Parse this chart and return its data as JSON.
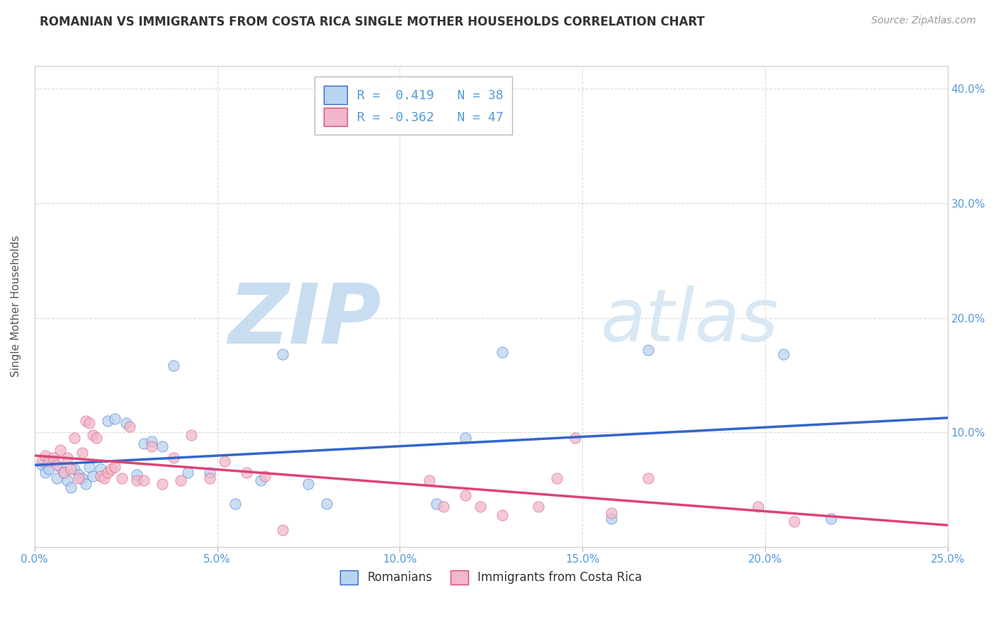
{
  "title": "ROMANIAN VS IMMIGRANTS FROM COSTA RICA SINGLE MOTHER HOUSEHOLDS CORRELATION CHART",
  "source": "Source: ZipAtlas.com",
  "ylabel": "Single Mother Households",
  "watermark_zip": "ZIP",
  "watermark_atlas": "atlas",
  "xlim": [
    0.0,
    0.25
  ],
  "ylim": [
    0.0,
    0.42
  ],
  "xticks": [
    0.0,
    0.05,
    0.1,
    0.15,
    0.2,
    0.25
  ],
  "yticks": [
    0.1,
    0.2,
    0.3,
    0.4
  ],
  "xticklabels": [
    "0.0%",
    "5.0%",
    "10.0%",
    "15.0%",
    "20.0%",
    "25.0%"
  ],
  "yticklabels": [
    "10.0%",
    "20.0%",
    "30.0%",
    "40.0%"
  ],
  "legend_labels": [
    "Romanians",
    "Immigrants from Costa Rica"
  ],
  "series1_color": "#b8d4f0",
  "series2_color": "#f0b8c8",
  "line1_color": "#3366cc",
  "line2_color": "#dd4477",
  "R1": 0.419,
  "N1": 38,
  "R2": -0.362,
  "N2": 47,
  "series1_x": [
    0.002,
    0.003,
    0.004,
    0.005,
    0.006,
    0.007,
    0.008,
    0.009,
    0.01,
    0.011,
    0.012,
    0.013,
    0.014,
    0.015,
    0.016,
    0.018,
    0.02,
    0.022,
    0.025,
    0.028,
    0.03,
    0.032,
    0.035,
    0.038,
    0.042,
    0.048,
    0.055,
    0.062,
    0.068,
    0.075,
    0.08,
    0.11,
    0.118,
    0.128,
    0.158,
    0.168,
    0.205,
    0.218
  ],
  "series1_y": [
    0.072,
    0.065,
    0.068,
    0.075,
    0.06,
    0.07,
    0.065,
    0.058,
    0.052,
    0.068,
    0.063,
    0.06,
    0.055,
    0.07,
    0.062,
    0.068,
    0.11,
    0.112,
    0.108,
    0.063,
    0.09,
    0.092,
    0.088,
    0.158,
    0.065,
    0.065,
    0.038,
    0.058,
    0.168,
    0.055,
    0.038,
    0.038,
    0.095,
    0.17,
    0.025,
    0.172,
    0.168,
    0.025
  ],
  "series2_x": [
    0.002,
    0.003,
    0.004,
    0.005,
    0.006,
    0.007,
    0.008,
    0.009,
    0.01,
    0.011,
    0.012,
    0.013,
    0.014,
    0.015,
    0.016,
    0.017,
    0.018,
    0.019,
    0.02,
    0.021,
    0.022,
    0.024,
    0.026,
    0.028,
    0.03,
    0.032,
    0.035,
    0.038,
    0.04,
    0.043,
    0.048,
    0.052,
    0.058,
    0.063,
    0.068,
    0.108,
    0.112,
    0.118,
    0.122,
    0.128,
    0.138,
    0.143,
    0.148,
    0.158,
    0.168,
    0.198,
    0.208
  ],
  "series2_y": [
    0.075,
    0.08,
    0.075,
    0.078,
    0.072,
    0.085,
    0.065,
    0.078,
    0.068,
    0.095,
    0.06,
    0.082,
    0.11,
    0.108,
    0.098,
    0.095,
    0.062,
    0.06,
    0.065,
    0.068,
    0.07,
    0.06,
    0.105,
    0.058,
    0.058,
    0.088,
    0.055,
    0.078,
    0.058,
    0.098,
    0.06,
    0.075,
    0.065,
    0.062,
    0.015,
    0.058,
    0.035,
    0.045,
    0.035,
    0.028,
    0.035,
    0.06,
    0.095,
    0.03,
    0.06,
    0.035,
    0.022
  ],
  "background_color": "#ffffff",
  "grid_color": "#cccccc",
  "title_color": "#333333",
  "tick_color": "#5599dd",
  "watermark_color_zip": "#c8ddf0",
  "watermark_color_atlas": "#d8e8f4"
}
